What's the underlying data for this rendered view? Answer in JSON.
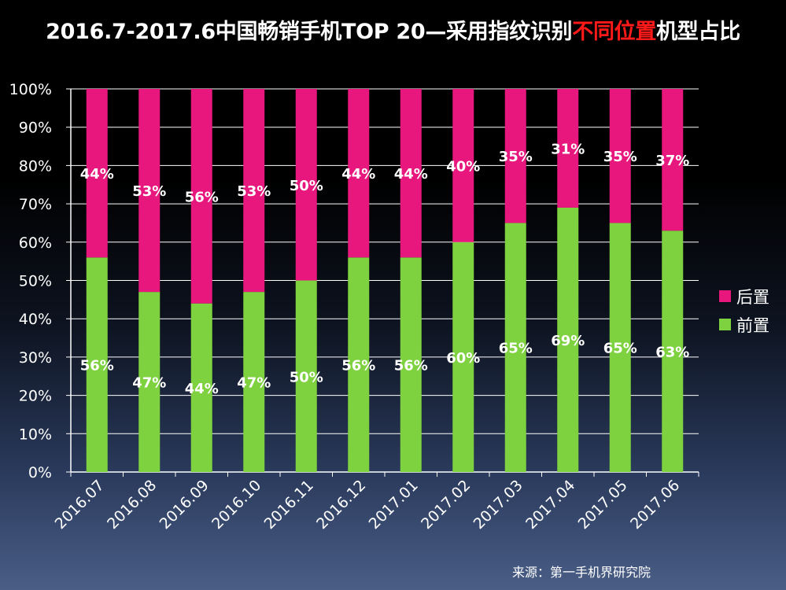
{
  "title": {
    "prefix": "2016.7-2017.6中国畅销手机TOP 20—采用指纹识别",
    "highlight": "不同位置",
    "suffix": "机型占比"
  },
  "source": "来源：第一手机界研究院",
  "colors": {
    "front": "#7ed13f",
    "rear": "#e8177d",
    "highlight": "#ff1a1a",
    "axis": "#ffffff",
    "grid": "#ffffff"
  },
  "chart_data": {
    "type": "bar",
    "stacked": true,
    "categories": [
      "2016.07",
      "2016.08",
      "2016.09",
      "2016.10",
      "2016.11",
      "2016.12",
      "2017.01",
      "2017.02",
      "2017.03",
      "2017.04",
      "2017.05",
      "2017.06"
    ],
    "series": [
      {
        "name": "前置",
        "key": "front",
        "values": [
          56,
          47,
          44,
          47,
          50,
          56,
          56,
          60,
          65,
          69,
          65,
          63
        ],
        "labels": [
          "56%",
          "47%",
          "44%",
          "47%",
          "50%",
          "56%",
          "56%",
          "60%",
          "65%",
          "69%",
          "65%",
          "63%"
        ]
      },
      {
        "name": "后置",
        "key": "rear",
        "values": [
          44,
          53,
          56,
          53,
          50,
          44,
          44,
          40,
          35,
          31,
          35,
          37
        ],
        "labels": [
          "44%",
          "53%",
          "56%",
          "53%",
          "50%",
          "44%",
          "44%",
          "40%",
          "35%",
          "31%",
          "35%",
          "37%"
        ]
      }
    ],
    "ylim": [
      0,
      100
    ],
    "yticks": [
      "0%",
      "10%",
      "20%",
      "30%",
      "40%",
      "50%",
      "60%",
      "70%",
      "80%",
      "90%",
      "100%"
    ],
    "legend": [
      {
        "name": "后置",
        "key": "rear"
      },
      {
        "name": "前置",
        "key": "front"
      }
    ],
    "legend_position": "right",
    "grid": true
  }
}
